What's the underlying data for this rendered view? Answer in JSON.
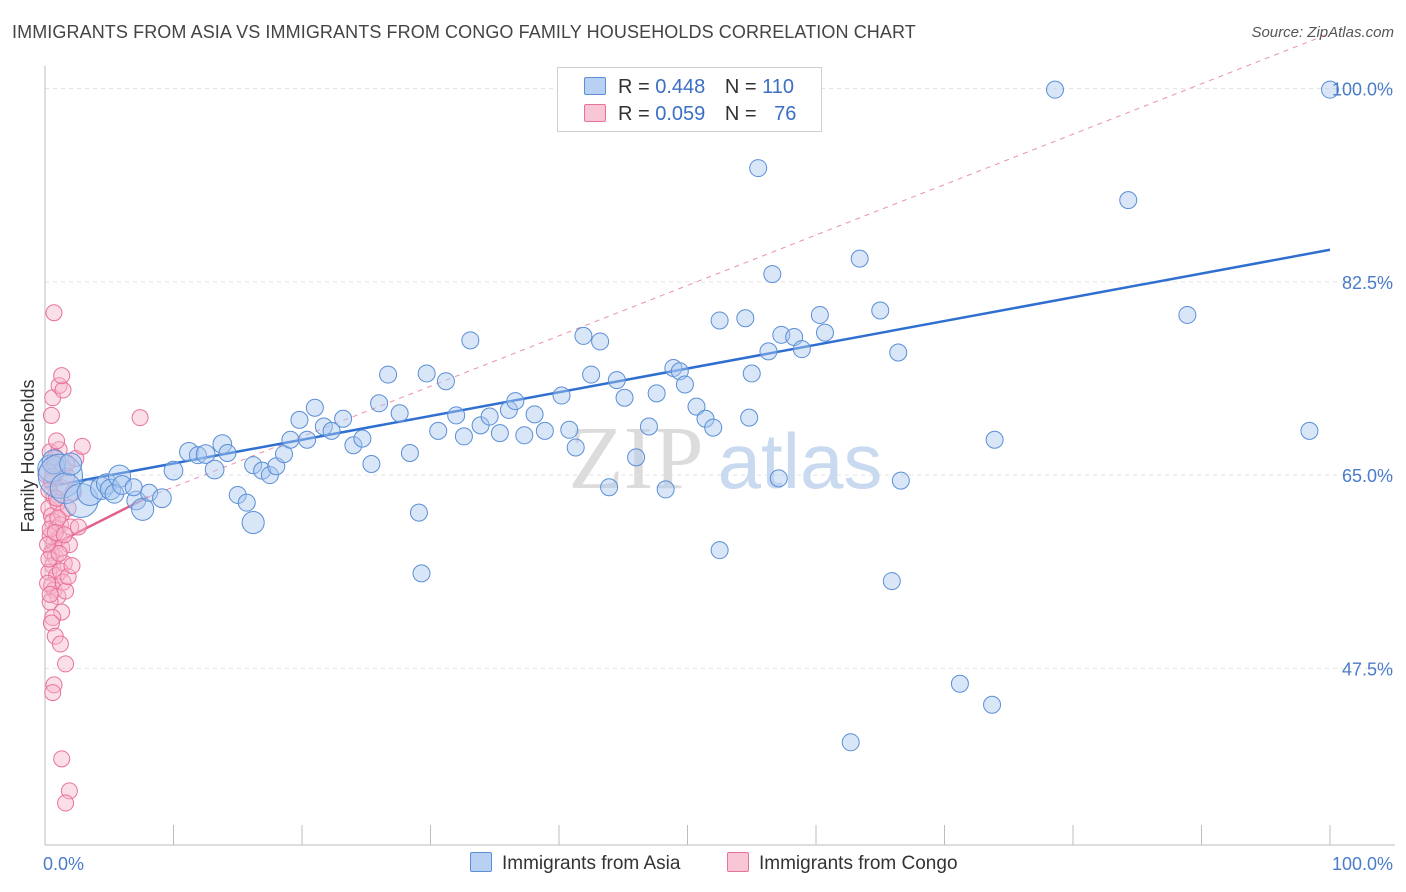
{
  "header": {
    "title": "IMMIGRANTS FROM ASIA VS IMMIGRANTS FROM CONGO FAMILY HOUSEHOLDS CORRELATION CHART",
    "source": "Source: ZipAtlas.com"
  },
  "legend": {
    "r_label": "R =",
    "n_label": "N =",
    "asia": {
      "r": "0.448",
      "n": "110"
    },
    "congo": {
      "r": "0.059",
      "n": "76"
    }
  },
  "bottom_legend": {
    "asia": "Immigrants from Asia",
    "congo": "Immigrants from Congo"
  },
  "watermark": {
    "zip": "ZIP",
    "atlas": "atlas"
  },
  "colors": {
    "asia_fill": "#a9c8f0",
    "asia_stroke": "#5b8fd6",
    "asia_line": "#2f6fd0",
    "congo_fill": "#f7b8cb",
    "congo_stroke": "#e8729a",
    "congo_line": "#e0608c",
    "grid": "#e3e3e3",
    "axis_text": "#4a7cc9"
  },
  "chart_data": {
    "type": "scatter",
    "title": "IMMIGRANTS FROM ASIA VS IMMIGRANTS FROM CONGO FAMILY HOUSEHOLDS CORRELATION CHART",
    "xlabel": "",
    "ylabel": "Family Households",
    "xlim": [
      0,
      100
    ],
    "ylim": [
      31.5,
      101.5
    ],
    "x_tick_labels": [
      "0.0%",
      "100.0%"
    ],
    "y_ticks": [
      47.5,
      65.0,
      82.5,
      100.0
    ],
    "y_tick_labels": [
      "47.5%",
      "65.0%",
      "82.5%",
      "100.0%"
    ],
    "grid": true,
    "series": [
      {
        "name": "Immigrants from Asia",
        "color": "#a9c8f0",
        "trend": {
          "x": [
            0,
            100
          ],
          "y": [
            63.9,
            85.4
          ],
          "style": "solid"
        },
        "points": [
          [
            0.5,
            65.6,
            1.6
          ],
          [
            0.7,
            66.2,
            1.4
          ],
          [
            1.2,
            64.9,
            2.6
          ],
          [
            1.6,
            63.8,
            1.8
          ],
          [
            2.0,
            66.0,
            1.3
          ],
          [
            2.8,
            62.7,
            2.0
          ],
          [
            3.5,
            63.4,
            1.5
          ],
          [
            4.4,
            63.8,
            1.3
          ],
          [
            4.8,
            64.2,
            1.2
          ],
          [
            5.1,
            63.7,
            1.2
          ],
          [
            5.8,
            64.9,
            1.3
          ],
          [
            5.4,
            63.3,
            1.1
          ],
          [
            6.0,
            64.1,
            1.1
          ],
          [
            7.1,
            62.7,
            1.1
          ],
          [
            7.6,
            61.9,
            1.3
          ],
          [
            8.1,
            63.4,
            1.0
          ],
          [
            9.1,
            62.9,
            1.1
          ],
          [
            6.9,
            63.9,
            1.0
          ],
          [
            10.0,
            65.4,
            1.1
          ],
          [
            11.2,
            67.1,
            1.1
          ],
          [
            11.9,
            66.8,
            1.0
          ],
          [
            12.5,
            66.9,
            1.1
          ],
          [
            13.2,
            65.5,
            1.1
          ],
          [
            13.8,
            67.8,
            1.1
          ],
          [
            15.0,
            63.2,
            1.0
          ],
          [
            15.7,
            62.5,
            1.0
          ],
          [
            16.2,
            65.9,
            1.0
          ],
          [
            16.9,
            65.4,
            1.0
          ],
          [
            17.5,
            65.0,
            1.0
          ],
          [
            18.0,
            65.8,
            1.0
          ],
          [
            18.6,
            66.9,
            1.0
          ],
          [
            19.1,
            68.2,
            1.0
          ],
          [
            19.8,
            70.0,
            1.0
          ],
          [
            20.4,
            68.2,
            1.0
          ],
          [
            21.0,
            71.1,
            1.0
          ],
          [
            21.7,
            69.4,
            1.0
          ],
          [
            22.3,
            69.0,
            1.0
          ],
          [
            23.2,
            70.1,
            1.0
          ],
          [
            24.0,
            67.7,
            1.0
          ],
          [
            24.7,
            68.3,
            1.0
          ],
          [
            25.4,
            66.0,
            1.0
          ],
          [
            26.0,
            71.5,
            1.0
          ],
          [
            26.7,
            74.1,
            1.0
          ],
          [
            27.6,
            70.6,
            1.0
          ],
          [
            28.4,
            67.0,
            1.0
          ],
          [
            29.1,
            61.6,
            1.0
          ],
          [
            29.7,
            74.2,
            1.0
          ],
          [
            30.6,
            69.0,
            1.0
          ],
          [
            31.2,
            73.5,
            1.0
          ],
          [
            32.0,
            70.4,
            1.0
          ],
          [
            32.6,
            68.5,
            1.0
          ],
          [
            33.1,
            77.2,
            1.0
          ],
          [
            33.9,
            69.5,
            1.0
          ],
          [
            34.6,
            70.3,
            1.0
          ],
          [
            35.4,
            68.8,
            1.0
          ],
          [
            36.1,
            70.9,
            1.0
          ],
          [
            36.6,
            71.7,
            1.0
          ],
          [
            37.3,
            68.6,
            1.0
          ],
          [
            38.1,
            70.5,
            1.0
          ],
          [
            38.9,
            69.0,
            1.0
          ],
          [
            29.3,
            56.1,
            1.0
          ],
          [
            16.2,
            60.7,
            1.3
          ],
          [
            40.2,
            72.2,
            1.0
          ],
          [
            40.8,
            69.1,
            1.0
          ],
          [
            41.3,
            67.5,
            1.0
          ],
          [
            41.9,
            77.6,
            1.0
          ],
          [
            42.5,
            74.1,
            1.0
          ],
          [
            43.2,
            77.1,
            1.0
          ],
          [
            43.9,
            63.9,
            1.0
          ],
          [
            44.5,
            73.6,
            1.0
          ],
          [
            45.1,
            72.0,
            1.0
          ],
          [
            46.0,
            66.6,
            1.0
          ],
          [
            47.0,
            69.4,
            1.0
          ],
          [
            47.6,
            72.4,
            1.0
          ],
          [
            48.3,
            63.7,
            1.0
          ],
          [
            48.9,
            74.7,
            1.0
          ],
          [
            49.4,
            74.4,
            1.0
          ],
          [
            49.8,
            73.2,
            1.0
          ],
          [
            50.7,
            71.2,
            1.0
          ],
          [
            51.4,
            70.1,
            1.0
          ],
          [
            52.0,
            69.3,
            1.0
          ],
          [
            52.5,
            79.0,
            1.0
          ],
          [
            55.0,
            74.2,
            1.0
          ],
          [
            52.5,
            58.2,
            1.0
          ],
          [
            54.5,
            79.2,
            1.0
          ],
          [
            54.8,
            70.2,
            1.0
          ],
          [
            55.5,
            92.8,
            1.0
          ],
          [
            56.3,
            76.2,
            1.0
          ],
          [
            56.6,
            83.2,
            1.0
          ],
          [
            57.3,
            77.7,
            1.0
          ],
          [
            58.3,
            77.5,
            1.0
          ],
          [
            58.9,
            76.4,
            1.0
          ],
          [
            60.3,
            79.5,
            1.0
          ],
          [
            60.7,
            77.9,
            1.0
          ],
          [
            63.4,
            84.6,
            1.0
          ],
          [
            65.0,
            79.9,
            1.0
          ],
          [
            66.4,
            76.1,
            1.0
          ],
          [
            66.6,
            64.5,
            1.0
          ],
          [
            57.1,
            64.7,
            1.0
          ],
          [
            65.9,
            55.4,
            1.0
          ],
          [
            62.7,
            40.8,
            1.0
          ],
          [
            71.2,
            46.1,
            1.0
          ],
          [
            73.7,
            44.2,
            1.0
          ],
          [
            73.9,
            68.2,
            1.0
          ],
          [
            84.3,
            89.9,
            1.0
          ],
          [
            78.6,
            99.9,
            1.0
          ],
          [
            98.4,
            69.0,
            1.0
          ],
          [
            88.9,
            79.5,
            1.0
          ],
          [
            100.0,
            99.9,
            1.0
          ],
          [
            14.2,
            67.0,
            1.0
          ]
        ]
      },
      {
        "name": "Immigrants from Congo",
        "color": "#f7b8cb",
        "trend": {
          "x": [
            0,
            8
          ],
          "y": [
            58.3,
            63.0
          ],
          "style": "solid",
          "dashed_x": [
            8,
            100
          ],
          "dashed_y": [
            63.0,
            105.0
          ]
        },
        "points": [
          [
            0.2,
            65.1,
            1.2
          ],
          [
            0.4,
            67.1,
            1.0
          ],
          [
            0.5,
            64.4,
            1.0
          ],
          [
            0.6,
            65.7,
            1.0
          ],
          [
            0.7,
            63.0,
            1.0
          ],
          [
            0.8,
            66.0,
            1.0
          ],
          [
            0.3,
            62.0,
            1.0
          ],
          [
            0.5,
            61.3,
            1.0
          ],
          [
            0.6,
            60.8,
            1.0
          ],
          [
            0.9,
            60.2,
            1.0
          ],
          [
            0.4,
            59.5,
            1.0
          ],
          [
            0.7,
            58.9,
            1.0
          ],
          [
            0.5,
            58.0,
            1.0
          ],
          [
            0.8,
            57.6,
            1.0
          ],
          [
            0.6,
            56.8,
            1.0
          ],
          [
            0.3,
            56.2,
            1.0
          ],
          [
            0.9,
            55.9,
            1.0
          ],
          [
            0.5,
            55.0,
            1.0
          ],
          [
            0.7,
            54.6,
            1.0
          ],
          [
            1.0,
            54.0,
            1.0
          ],
          [
            0.4,
            53.5,
            1.0
          ],
          [
            1.1,
            59.3,
            1.0
          ],
          [
            1.3,
            61.5,
            1.0
          ],
          [
            1.2,
            60.5,
            1.0
          ],
          [
            1.0,
            62.5,
            1.0
          ],
          [
            1.2,
            63.9,
            1.0
          ],
          [
            1.4,
            65.6,
            1.0
          ],
          [
            1.1,
            67.3,
            1.0
          ],
          [
            0.8,
            66.6,
            1.0
          ],
          [
            1.3,
            58.4,
            1.0
          ],
          [
            1.5,
            57.0,
            1.0
          ],
          [
            1.2,
            56.3,
            1.0
          ],
          [
            1.4,
            55.3,
            1.0
          ],
          [
            1.6,
            54.5,
            1.0
          ],
          [
            1.3,
            52.6,
            1.0
          ],
          [
            0.6,
            52.1,
            1.0
          ],
          [
            0.5,
            51.6,
            1.0
          ],
          [
            0.8,
            50.4,
            1.0
          ],
          [
            1.2,
            49.7,
            1.0
          ],
          [
            1.6,
            47.9,
            1.0
          ],
          [
            0.7,
            46.0,
            1.0
          ],
          [
            0.6,
            45.3,
            1.0
          ],
          [
            1.3,
            39.3,
            1.0
          ],
          [
            1.9,
            36.4,
            1.0
          ],
          [
            1.6,
            35.3,
            1.0
          ],
          [
            0.7,
            79.7,
            1.0
          ],
          [
            0.6,
            72.0,
            1.0
          ],
          [
            1.1,
            73.1,
            1.0
          ],
          [
            1.4,
            72.7,
            1.0
          ],
          [
            1.3,
            74.0,
            1.0
          ],
          [
            0.9,
            68.1,
            1.0
          ],
          [
            0.5,
            70.4,
            1.0
          ],
          [
            2.0,
            60.3,
            1.0
          ],
          [
            2.6,
            60.3,
            1.0
          ],
          [
            1.8,
            62.0,
            1.0
          ],
          [
            2.2,
            63.4,
            1.0
          ],
          [
            1.7,
            64.9,
            1.0
          ],
          [
            2.4,
            66.5,
            1.0
          ],
          [
            2.9,
            67.6,
            1.0
          ],
          [
            1.9,
            58.7,
            1.0
          ],
          [
            1.8,
            55.8,
            1.0
          ],
          [
            2.1,
            56.8,
            1.0
          ],
          [
            7.4,
            70.2,
            1.0
          ],
          [
            0.3,
            63.6,
            1.0
          ],
          [
            0.4,
            60.1,
            1.0
          ],
          [
            0.2,
            58.7,
            1.0
          ],
          [
            0.3,
            57.4,
            1.0
          ],
          [
            0.2,
            55.2,
            1.0
          ],
          [
            0.9,
            62.9,
            1.0
          ],
          [
            1.0,
            61.1,
            1.0
          ],
          [
            0.8,
            59.8,
            1.0
          ],
          [
            1.1,
            57.9,
            1.0
          ],
          [
            0.6,
            64.9,
            1.0
          ],
          [
            1.5,
            59.6,
            1.0
          ],
          [
            0.4,
            54.2,
            1.0
          ],
          [
            1.7,
            66.1,
            1.0
          ]
        ]
      }
    ],
    "annotations": [
      "R = 0.448  N = 110",
      "R = 0.059  N = 76"
    ]
  }
}
